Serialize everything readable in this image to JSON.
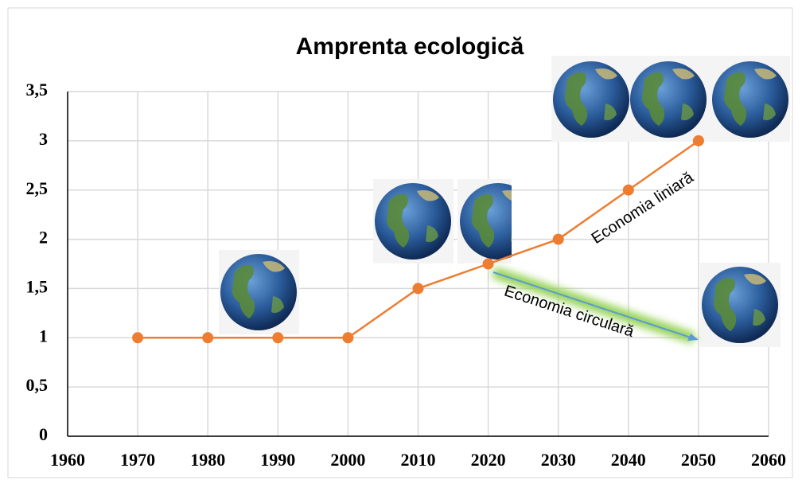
{
  "chart_data": {
    "type": "line",
    "title": "Amprenta ecologică",
    "x": [
      1970,
      1980,
      1990,
      2000,
      2010,
      2020,
      2030,
      2040,
      2050
    ],
    "series": [
      {
        "name": "Amprenta ecologică",
        "color": "#ed7d31",
        "values": [
          1,
          1,
          1,
          1,
          1.5,
          1.75,
          2,
          2.5,
          3
        ]
      }
    ],
    "xlim": [
      1960,
      2060
    ],
    "xticks": [
      1960,
      1970,
      1980,
      1990,
      2000,
      2010,
      2020,
      2030,
      2040,
      2050,
      2060
    ],
    "ylim": [
      0,
      3.5
    ],
    "yticks": [
      0,
      {
        "value": 0.5,
        "label": "0,5"
      },
      1,
      {
        "value": 1.5,
        "label": "1,5"
      },
      2,
      {
        "value": 2.5,
        "label": "2,5"
      },
      3,
      {
        "value": 3.5,
        "label": "3,5"
      }
    ],
    "grid": true,
    "annotations": [
      "Economia liniară",
      "Economia circulară"
    ]
  }
}
